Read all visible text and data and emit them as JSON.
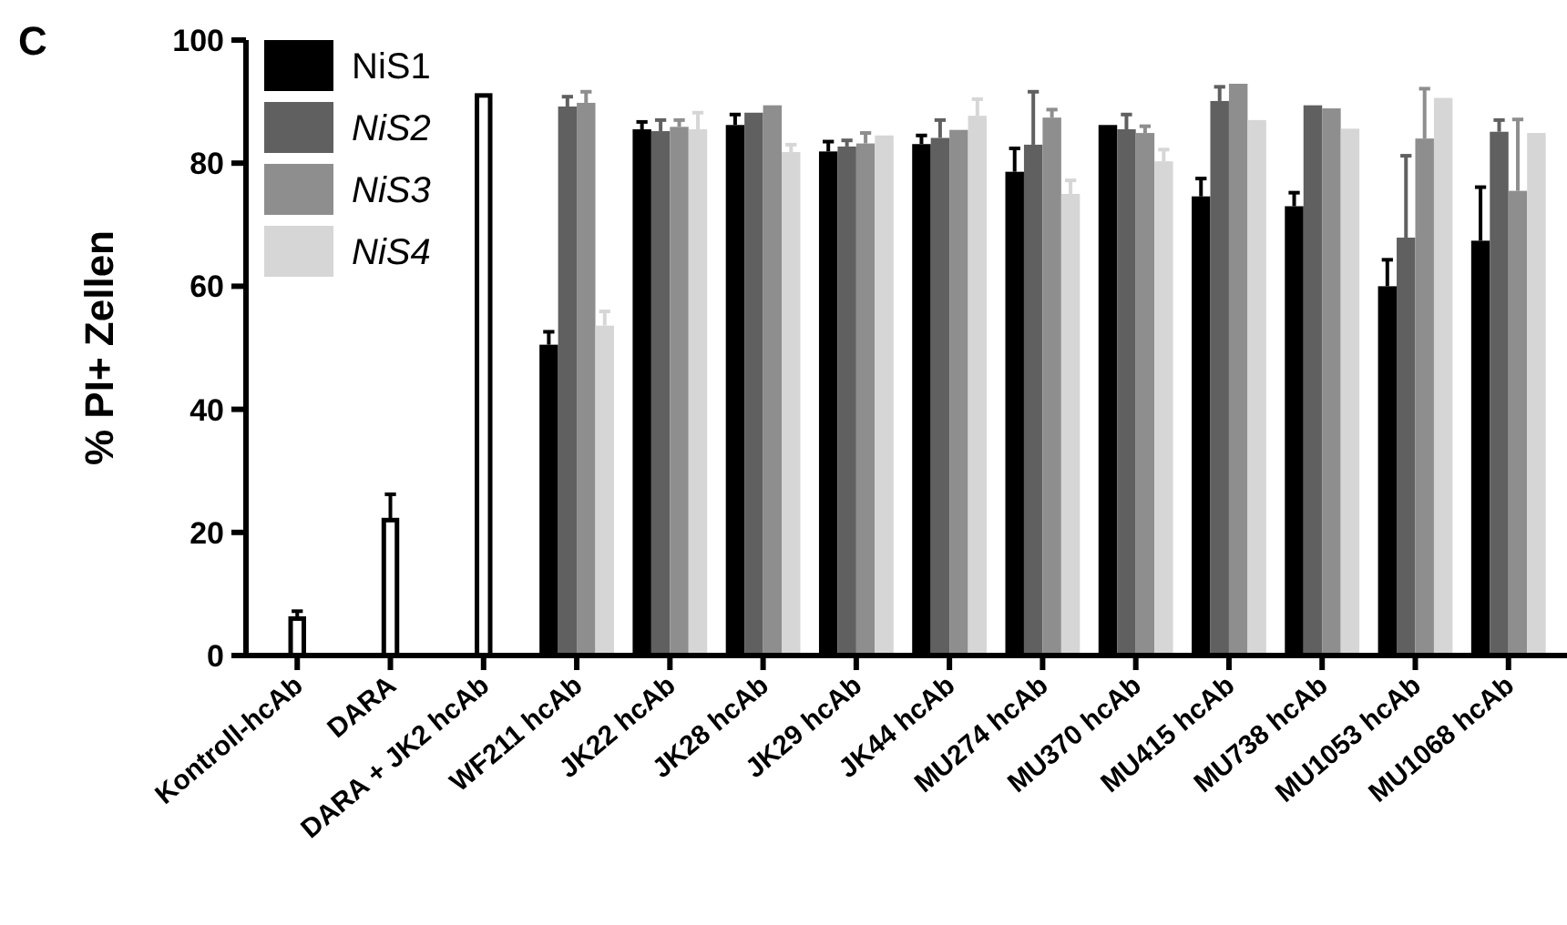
{
  "chart_data": {
    "type": "bar",
    "ylabel": "% PI+ Zellen",
    "annotations": [
      "C"
    ],
    "categories": [
      "Kontroll-hcAb",
      "DARA",
      "DARA + JK2 hcAb",
      "WF211 hcAb",
      "JK22 hcAb",
      "JK28 hcAb",
      "JK29 hcAb",
      "JK44 hcAb",
      "MU274 hcAb",
      "MU370 hcAb",
      "MU415 hcAb",
      "MU738 hcAb",
      "MU1053 hcAb",
      "MU1068 hcAb"
    ],
    "series": [
      {
        "color": "#ffffff",
        "values": [
          6,
          22,
          91,
          null,
          null,
          null,
          null,
          null,
          null,
          null,
          null,
          null,
          null,
          null
        ],
        "errors": [
          [
            6,
            7.2
          ],
          [
            22,
            26.2
          ],
          null,
          null,
          null,
          null,
          null,
          null,
          null,
          null,
          null,
          null,
          null,
          null
        ]
      },
      {
        "name": "NiS1",
        "color": "#000000",
        "values": [
          null,
          null,
          null,
          50.5,
          85.5,
          86.2,
          81.9,
          83.1,
          78.6,
          86.2,
          74.6,
          73,
          60,
          67.4
        ],
        "errors": [
          null,
          null,
          null,
          [
            50.5,
            52.6
          ],
          [
            85.5,
            86.7
          ],
          [
            86.2,
            87.9
          ],
          [
            81.9,
            83.5
          ],
          [
            83.1,
            84.5
          ],
          [
            78.6,
            82.4
          ],
          null,
          [
            74.6,
            77.5
          ],
          [
            73,
            75.2
          ],
          [
            60,
            64.3
          ],
          [
            67.4,
            76.1
          ]
        ]
      },
      {
        "name": "NiS2",
        "color": "#606060",
        "values": [
          null,
          null,
          null,
          89.2,
          85.2,
          88.2,
          82.7,
          84.1,
          83,
          85.5,
          90.1,
          89.4,
          67.9,
          85.1
        ],
        "errors": [
          null,
          null,
          null,
          [
            89.2,
            90.8
          ],
          [
            85.2,
            87
          ],
          null,
          [
            82.7,
            83.7
          ],
          [
            84.1,
            87
          ],
          [
            83,
            91.6
          ],
          [
            85.5,
            87.9
          ],
          [
            90.1,
            92.4
          ],
          null,
          [
            67.9,
            81.2
          ],
          [
            85.1,
            87
          ]
        ]
      },
      {
        "name": "NiS3",
        "color": "#8e8e8e",
        "values": [
          null,
          null,
          null,
          89.8,
          85.9,
          89.4,
          83.2,
          85.4,
          87.4,
          84.9,
          92.9,
          88.9,
          84,
          75.5
        ],
        "errors": [
          null,
          null,
          null,
          [
            89.8,
            91.6
          ],
          [
            85.9,
            87
          ],
          null,
          [
            83.2,
            84.9
          ],
          null,
          [
            87.4,
            88.7
          ],
          [
            84.9,
            86
          ],
          null,
          null,
          [
            84,
            92.1
          ],
          [
            75.5,
            87.1
          ]
        ]
      },
      {
        "name": "NiS4",
        "color": "#d6d6d6",
        "values": [
          null,
          null,
          null,
          53.6,
          85.5,
          81.8,
          84.5,
          87.7,
          75,
          80.3,
          87,
          85.6,
          90.6,
          84.9
        ],
        "errors": [
          null,
          null,
          null,
          [
            53.6,
            55.9
          ],
          [
            85.5,
            88.2
          ],
          [
            81.8,
            83
          ],
          null,
          [
            87.7,
            90.4
          ],
          [
            75,
            77.2
          ],
          [
            80.3,
            82.2
          ],
          null,
          null,
          null,
          null
        ]
      }
    ],
    "ylim": [
      0,
      100
    ],
    "yticks": [
      0,
      20,
      40,
      60,
      80,
      100
    ],
    "grid": false,
    "legend": "top left"
  }
}
